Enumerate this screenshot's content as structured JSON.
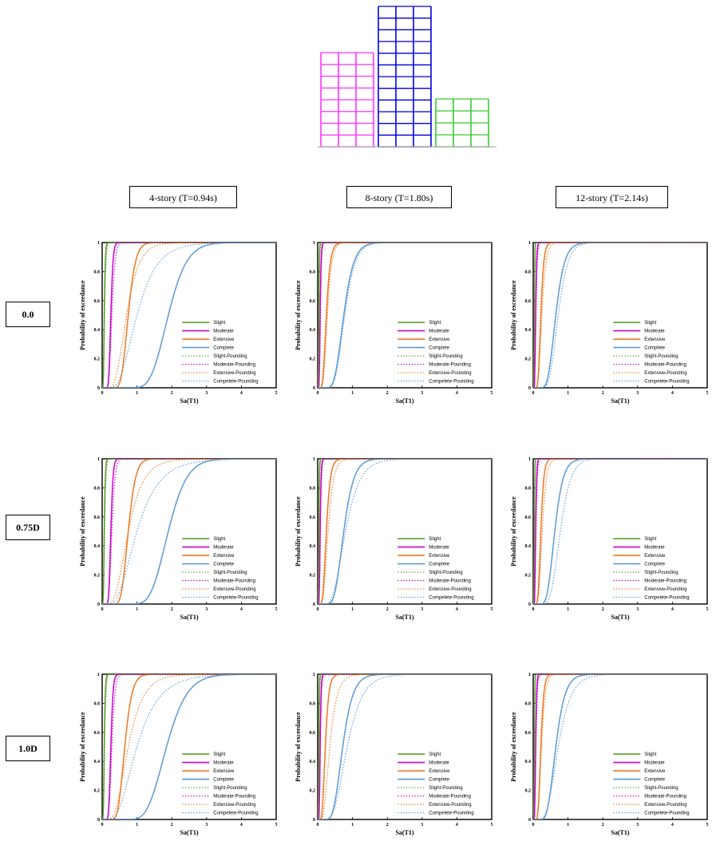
{
  "column_headers": [
    "4-story (T=0.94s)",
    "8-story (T=1.80s)",
    "12-story (T=2.14s)"
  ],
  "row_headers": [
    "0.0",
    "0.75D",
    "1.0D"
  ],
  "colors": {
    "slight": "#5aa02c",
    "moderate": "#cc00cc",
    "extensive": "#f07820",
    "complete": "#5b9bd5",
    "frame_4story": "#ff33ff",
    "frame_8story": "#0000dd",
    "frame_12story": "#33cc33",
    "ground": "#999999"
  },
  "chart_data": [
    {
      "type": "line",
      "panel": "4-story / 0.0",
      "xlabel": "Sa(T1)",
      "ylabel": "Probability of exceedance",
      "xlim": [
        0,
        5
      ],
      "ylim": [
        0,
        1
      ],
      "x_ticks": [
        "0",
        "1",
        "2",
        "3",
        "4",
        "5"
      ],
      "y_ticks": [
        "0",
        "0.2",
        "0.4",
        "0.6",
        "0.8",
        "1"
      ],
      "grid": false,
      "legend_position": "lower-right",
      "series": [
        {
          "name": "Slight",
          "style": "solid",
          "median": 0.06,
          "beta": 0.35
        },
        {
          "name": "Moderate",
          "style": "solid",
          "median": 0.25,
          "beta": 0.2
        },
        {
          "name": "Extensive",
          "style": "solid",
          "median": 0.75,
          "beta": 0.22
        },
        {
          "name": "Complete",
          "style": "solid",
          "median": 1.9,
          "beta": 0.22
        },
        {
          "name": "Slight-Pounding",
          "style": "dotted",
          "median": 0.07,
          "beta": 0.4
        },
        {
          "name": "Moderate-Pounding",
          "style": "dotted",
          "median": 0.28,
          "beta": 0.25
        },
        {
          "name": "Extensive-Pounding",
          "style": "dotted",
          "median": 0.7,
          "beta": 0.4
        },
        {
          "name": "Compelete-Pounding",
          "style": "dotted",
          "median": 1.0,
          "beta": 0.45
        }
      ]
    },
    {
      "type": "line",
      "panel": "8-story / 0.0",
      "xlabel": "Sa(T1)",
      "ylabel": "Probability of exceedance",
      "xlim": [
        0,
        5
      ],
      "ylim": [
        0,
        1
      ],
      "x_ticks": [
        "0",
        "1",
        "2",
        "3",
        "4",
        "5"
      ],
      "y_ticks": [
        "0",
        "0.2",
        "0.4",
        "0.6",
        "0.8",
        "1"
      ],
      "grid": false,
      "legend_position": "lower-right",
      "series": [
        {
          "name": "Slight",
          "style": "solid",
          "median": 0.03,
          "beta": 0.35
        },
        {
          "name": "Moderate",
          "style": "solid",
          "median": 0.07,
          "beta": 0.3
        },
        {
          "name": "Extensive",
          "style": "solid",
          "median": 0.25,
          "beta": 0.35
        },
        {
          "name": "Complete",
          "style": "solid",
          "median": 0.75,
          "beta": 0.3
        },
        {
          "name": "Slight-Pounding",
          "style": "dotted",
          "median": 0.04,
          "beta": 0.35
        },
        {
          "name": "Moderate-Pounding",
          "style": "dotted",
          "median": 0.08,
          "beta": 0.3
        },
        {
          "name": "Extensive-Pounding",
          "style": "dotted",
          "median": 0.28,
          "beta": 0.35
        },
        {
          "name": "Compelete-Pounding",
          "style": "dotted",
          "median": 0.78,
          "beta": 0.3
        }
      ]
    },
    {
      "type": "line",
      "panel": "12-story / 0.0",
      "xlabel": "Sa(T1)",
      "ylabel": "Probability of exceedance",
      "xlim": [
        0,
        5
      ],
      "ylim": [
        0,
        1
      ],
      "x_ticks": [
        "0",
        "1",
        "2",
        "3",
        "4",
        "5"
      ],
      "y_ticks": [
        "0",
        "0.2",
        "0.4",
        "0.6",
        "0.8",
        "1"
      ],
      "grid": false,
      "legend_position": "lower-right",
      "series": [
        {
          "name": "Slight",
          "style": "solid",
          "median": 0.03,
          "beta": 0.3
        },
        {
          "name": "Moderate",
          "style": "solid",
          "median": 0.07,
          "beta": 0.3
        },
        {
          "name": "Extensive",
          "style": "solid",
          "median": 0.22,
          "beta": 0.3
        },
        {
          "name": "Complete",
          "style": "solid",
          "median": 0.65,
          "beta": 0.3
        },
        {
          "name": "Slight-Pounding",
          "style": "dotted",
          "median": 0.03,
          "beta": 0.35
        },
        {
          "name": "Moderate-Pounding",
          "style": "dotted",
          "median": 0.08,
          "beta": 0.35
        },
        {
          "name": "Extensive-Pounding",
          "style": "dotted",
          "median": 0.25,
          "beta": 0.35
        },
        {
          "name": "Compelete-Pounding",
          "style": "dotted",
          "median": 0.72,
          "beta": 0.3
        }
      ]
    },
    {
      "type": "line",
      "panel": "4-story / 0.75D",
      "xlabel": "Sa(T1)",
      "ylabel": "Probability of exceedance",
      "xlim": [
        0,
        5
      ],
      "ylim": [
        0,
        1
      ],
      "x_ticks": [
        "0",
        "1",
        "2",
        "3",
        "4",
        "5"
      ],
      "y_ticks": [
        "0",
        "0.2",
        "0.4",
        "0.6",
        "0.8",
        "1"
      ],
      "grid": false,
      "legend_position": "lower-right",
      "series": [
        {
          "name": "Slight",
          "style": "solid",
          "median": 0.06,
          "beta": 0.35
        },
        {
          "name": "Moderate",
          "style": "solid",
          "median": 0.25,
          "beta": 0.2
        },
        {
          "name": "Extensive",
          "style": "solid",
          "median": 0.75,
          "beta": 0.22
        },
        {
          "name": "Complete",
          "style": "solid",
          "median": 1.9,
          "beta": 0.22
        },
        {
          "name": "Slight-Pounding",
          "style": "dotted",
          "median": 0.07,
          "beta": 0.4
        },
        {
          "name": "Moderate-Pounding",
          "style": "dotted",
          "median": 0.28,
          "beta": 0.25
        },
        {
          "name": "Extensive-Pounding",
          "style": "dotted",
          "median": 0.75,
          "beta": 0.45
        },
        {
          "name": "Compelete-Pounding",
          "style": "dotted",
          "median": 1.0,
          "beta": 0.5
        }
      ]
    },
    {
      "type": "line",
      "panel": "8-story / 0.75D",
      "xlabel": "Sa(T1)",
      "ylabel": "Probability of exceedance",
      "xlim": [
        0,
        5
      ],
      "ylim": [
        0,
        1
      ],
      "x_ticks": [
        "0",
        "1",
        "2",
        "3",
        "4",
        "5"
      ],
      "y_ticks": [
        "0",
        "0.2",
        "0.4",
        "0.6",
        "0.8",
        "1"
      ],
      "grid": false,
      "legend_position": "lower-right",
      "series": [
        {
          "name": "Slight",
          "style": "solid",
          "median": 0.03,
          "beta": 0.35
        },
        {
          "name": "Moderate",
          "style": "solid",
          "median": 0.07,
          "beta": 0.3
        },
        {
          "name": "Extensive",
          "style": "solid",
          "median": 0.25,
          "beta": 0.35
        },
        {
          "name": "Complete",
          "style": "solid",
          "median": 0.75,
          "beta": 0.3
        },
        {
          "name": "Slight-Pounding",
          "style": "dotted",
          "median": 0.04,
          "beta": 0.35
        },
        {
          "name": "Moderate-Pounding",
          "style": "dotted",
          "median": 0.08,
          "beta": 0.3
        },
        {
          "name": "Extensive-Pounding",
          "style": "dotted",
          "median": 0.3,
          "beta": 0.4
        },
        {
          "name": "Compelete-Pounding",
          "style": "dotted",
          "median": 0.8,
          "beta": 0.4
        }
      ]
    },
    {
      "type": "line",
      "panel": "12-story / 0.75D",
      "xlabel": "Sa(T1)",
      "ylabel": "Probability of exceedance",
      "xlim": [
        0,
        5
      ],
      "ylim": [
        0,
        1
      ],
      "x_ticks": [
        "0",
        "1",
        "2",
        "3",
        "4",
        "5"
      ],
      "y_ticks": [
        "0",
        "0.2",
        "0.4",
        "0.6",
        "0.8",
        "1"
      ],
      "grid": false,
      "legend_position": "lower-right",
      "series": [
        {
          "name": "Slight",
          "style": "solid",
          "median": 0.03,
          "beta": 0.3
        },
        {
          "name": "Moderate",
          "style": "solid",
          "median": 0.07,
          "beta": 0.3
        },
        {
          "name": "Extensive",
          "style": "solid",
          "median": 0.22,
          "beta": 0.3
        },
        {
          "name": "Complete",
          "style": "solid",
          "median": 0.62,
          "beta": 0.3
        },
        {
          "name": "Slight-Pounding",
          "style": "dotted",
          "median": 0.03,
          "beta": 0.35
        },
        {
          "name": "Moderate-Pounding",
          "style": "dotted",
          "median": 0.08,
          "beta": 0.35
        },
        {
          "name": "Extensive-Pounding",
          "style": "dotted",
          "median": 0.26,
          "beta": 0.35
        },
        {
          "name": "Compelete-Pounding",
          "style": "dotted",
          "median": 0.78,
          "beta": 0.3
        }
      ]
    },
    {
      "type": "line",
      "panel": "4-story / 1.0D",
      "xlabel": "Sa(T1)",
      "ylabel": "Probability of exceedance",
      "xlim": [
        0,
        5
      ],
      "ylim": [
        0,
        1
      ],
      "x_ticks": [
        "0",
        "1",
        "2",
        "3",
        "4",
        "5"
      ],
      "y_ticks": [
        "0",
        "0.2",
        "0.4",
        "0.6",
        "0.8",
        "1"
      ],
      "grid": false,
      "legend_position": "lower-right",
      "series": [
        {
          "name": "Slight",
          "style": "solid",
          "median": 0.06,
          "beta": 0.35
        },
        {
          "name": "Moderate",
          "style": "solid",
          "median": 0.25,
          "beta": 0.2
        },
        {
          "name": "Extensive",
          "style": "solid",
          "median": 0.65,
          "beta": 0.25
        },
        {
          "name": "Complete",
          "style": "solid",
          "median": 1.85,
          "beta": 0.25
        },
        {
          "name": "Slight-Pounding",
          "style": "dotted",
          "median": 0.07,
          "beta": 0.4
        },
        {
          "name": "Moderate-Pounding",
          "style": "dotted",
          "median": 0.28,
          "beta": 0.25
        },
        {
          "name": "Extensive-Pounding",
          "style": "dotted",
          "median": 0.75,
          "beta": 0.45
        },
        {
          "name": "Compelete-Pounding",
          "style": "dotted",
          "median": 1.0,
          "beta": 0.5
        }
      ]
    },
    {
      "type": "line",
      "panel": "8-story / 1.0D",
      "xlabel": "Sa(T1)",
      "ylabel": "Probability of exceedance",
      "xlim": [
        0,
        5
      ],
      "ylim": [
        0,
        1
      ],
      "x_ticks": [
        "0",
        "1",
        "2",
        "3",
        "4",
        "5"
      ],
      "y_ticks": [
        "0",
        "0.2",
        "0.4",
        "0.6",
        "0.8",
        "1"
      ],
      "grid": false,
      "legend_position": "lower-right",
      "series": [
        {
          "name": "Slight",
          "style": "solid",
          "median": 0.03,
          "beta": 0.35
        },
        {
          "name": "Moderate",
          "style": "solid",
          "median": 0.07,
          "beta": 0.3
        },
        {
          "name": "Extensive",
          "style": "solid",
          "median": 0.22,
          "beta": 0.35
        },
        {
          "name": "Complete",
          "style": "solid",
          "median": 0.72,
          "beta": 0.32
        },
        {
          "name": "Slight-Pounding",
          "style": "dotted",
          "median": 0.04,
          "beta": 0.35
        },
        {
          "name": "Moderate-Pounding",
          "style": "dotted",
          "median": 0.08,
          "beta": 0.3
        },
        {
          "name": "Extensive-Pounding",
          "style": "dotted",
          "median": 0.35,
          "beta": 0.45
        },
        {
          "name": "Compelete-Pounding",
          "style": "dotted",
          "median": 0.85,
          "beta": 0.4
        }
      ]
    },
    {
      "type": "line",
      "panel": "12-story / 1.0D",
      "xlabel": "Sa(T1)",
      "ylabel": "Probability of exceedance",
      "xlim": [
        0,
        5
      ],
      "ylim": [
        0,
        1
      ],
      "x_ticks": [
        "0",
        "1",
        "2",
        "3",
        "4",
        "5"
      ],
      "y_ticks": [
        "0",
        "0.2",
        "0.4",
        "0.6",
        "0.8",
        "1"
      ],
      "grid": false,
      "legend_position": "lower-right",
      "series": [
        {
          "name": "Slight",
          "style": "solid",
          "median": 0.03,
          "beta": 0.3
        },
        {
          "name": "Moderate",
          "style": "solid",
          "median": 0.07,
          "beta": 0.3
        },
        {
          "name": "Extensive",
          "style": "solid",
          "median": 0.22,
          "beta": 0.3
        },
        {
          "name": "Complete",
          "style": "solid",
          "median": 0.65,
          "beta": 0.32
        },
        {
          "name": "Slight-Pounding",
          "style": "dotted",
          "median": 0.03,
          "beta": 0.35
        },
        {
          "name": "Moderate-Pounding",
          "style": "dotted",
          "median": 0.08,
          "beta": 0.35
        },
        {
          "name": "Extensive-Pounding",
          "style": "dotted",
          "median": 0.24,
          "beta": 0.35
        },
        {
          "name": "Compelete-Pounding",
          "style": "dotted",
          "median": 0.72,
          "beta": 0.4
        }
      ]
    }
  ]
}
